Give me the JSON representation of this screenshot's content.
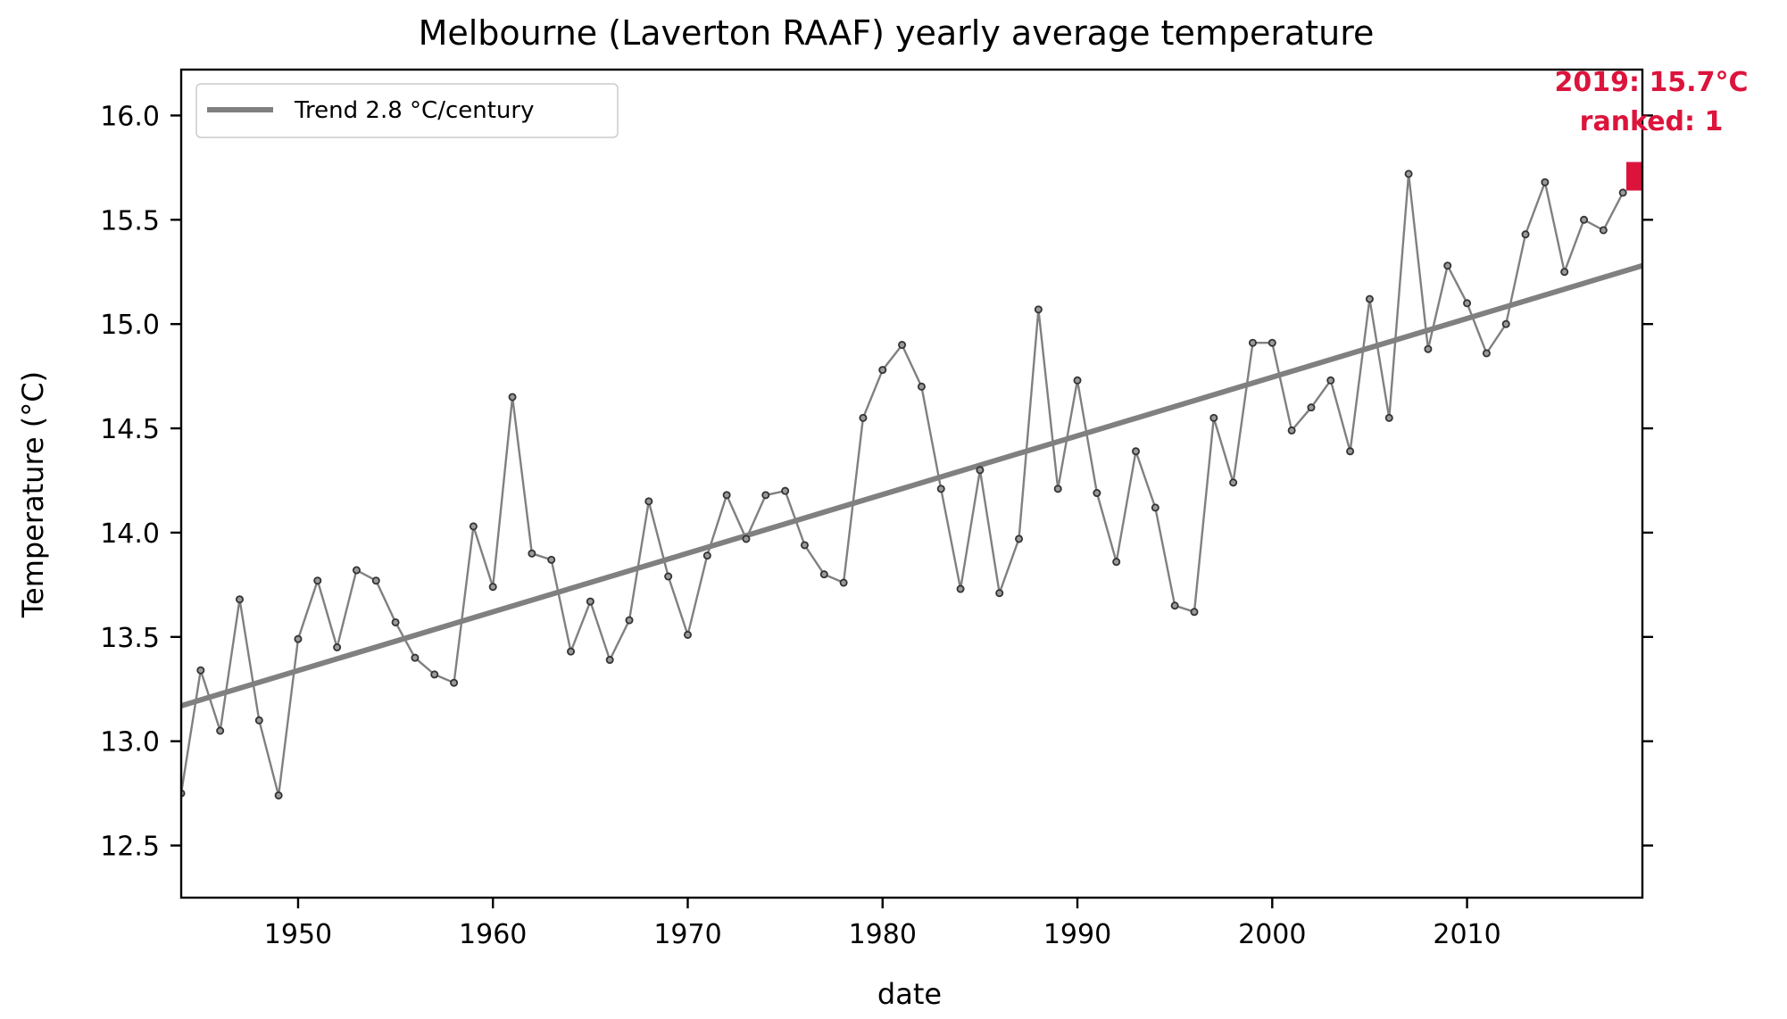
{
  "chart_data": {
    "type": "line",
    "title": "Melbourne (Laverton RAAF) yearly average temperature",
    "xlabel": "date",
    "ylabel": "Temperature (°C)",
    "xlim": [
      1944,
      2019
    ],
    "ylim": [
      12.25,
      16.22
    ],
    "x_ticks": [
      "1950",
      "1960",
      "1970",
      "1980",
      "1990",
      "2000",
      "2010"
    ],
    "y_ticks": [
      "12.5",
      "13.0",
      "13.5",
      "14.0",
      "14.5",
      "15.0",
      "15.5",
      "16.0"
    ],
    "grid": false,
    "legend_position": "top-left",
    "series": [
      {
        "name": "Trend 2.8 °C/century",
        "kind": "trend",
        "x": [
          1944,
          2019
        ],
        "y": [
          13.17,
          15.28
        ],
        "color": "#808080"
      },
      {
        "kind": "observed",
        "color": "#555555",
        "x": [
          1944,
          1945,
          1946,
          1947,
          1948,
          1949,
          1950,
          1951,
          1952,
          1953,
          1954,
          1955,
          1956,
          1957,
          1958,
          1959,
          1960,
          1961,
          1962,
          1963,
          1964,
          1965,
          1966,
          1967,
          1968,
          1969,
          1970,
          1971,
          1972,
          1973,
          1974,
          1975,
          1976,
          1977,
          1978,
          1979,
          1980,
          1981,
          1982,
          1983,
          1984,
          1985,
          1986,
          1987,
          1988,
          1989,
          1990,
          1991,
          1992,
          1993,
          1994,
          1995,
          1996,
          1997,
          1998,
          1999,
          2000,
          2001,
          2002,
          2003,
          2004,
          2005,
          2006,
          2007,
          2008,
          2009,
          2010,
          2011,
          2012,
          2013,
          2014,
          2015,
          2016,
          2017,
          2018
        ],
        "y": [
          12.75,
          13.34,
          13.05,
          13.68,
          13.1,
          12.74,
          13.49,
          13.77,
          13.45,
          13.82,
          13.77,
          13.57,
          13.4,
          13.32,
          13.28,
          14.03,
          13.74,
          14.65,
          13.9,
          13.87,
          13.43,
          13.67,
          13.39,
          13.58,
          14.15,
          13.79,
          13.51,
          13.89,
          14.18,
          13.97,
          14.18,
          14.2,
          13.94,
          13.8,
          13.76,
          14.55,
          14.78,
          14.9,
          14.7,
          14.21,
          13.73,
          14.3,
          13.71,
          13.97,
          15.07,
          14.21,
          14.73,
          14.19,
          13.86,
          14.39,
          14.12,
          13.65,
          13.62,
          14.55,
          14.24,
          14.91,
          14.91,
          14.49,
          14.6,
          14.73,
          14.39,
          15.12,
          14.55,
          15.72,
          14.88,
          15.28,
          15.1,
          14.86,
          15.0,
          15.43,
          15.68,
          15.25,
          15.5,
          15.45,
          15.63
        ]
      }
    ],
    "highlight": {
      "year": 2019,
      "value": 15.7,
      "color": "#dc143c",
      "label_line1": "2019: 15.7°C",
      "label_line2": "ranked: 1"
    }
  }
}
